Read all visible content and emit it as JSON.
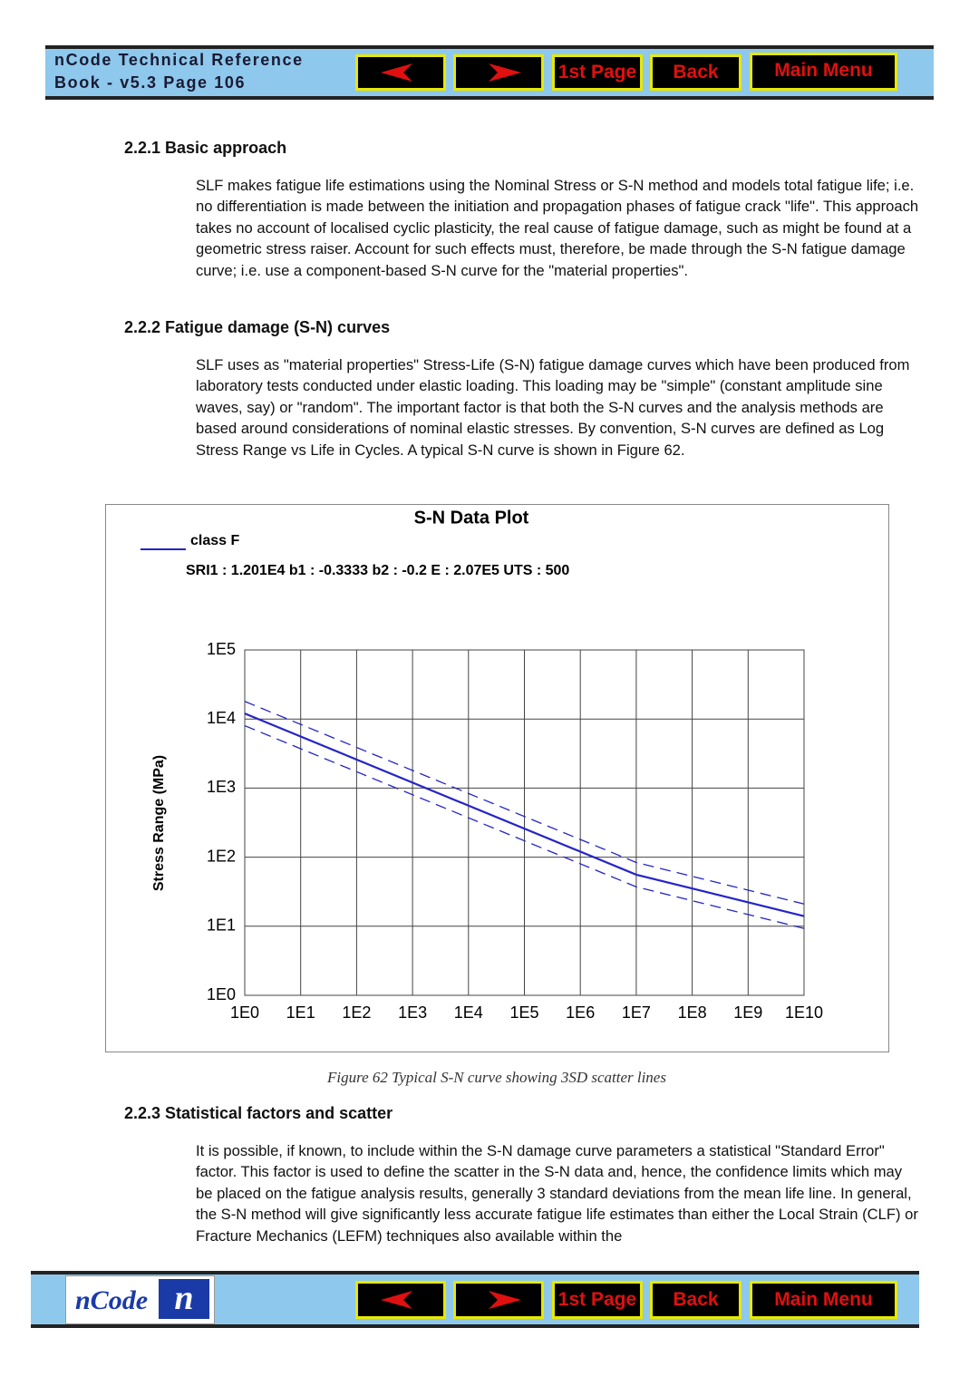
{
  "header": {
    "line1": "nCode Technical Reference",
    "line2": "Book - v5.3  Page 106",
    "buttons": [
      "1st Page",
      "Back",
      "Main Menu"
    ]
  },
  "sections": [
    {
      "heading": "2.2.1 Basic approach",
      "text": "SLF makes fatigue life estimations using the Nominal Stress or S-N method and models total fatigue life; i.e. no differentiation is made between the initiation and propagation phases of fatigue crack \"life\". This approach takes no account of localised cyclic plasticity, the real cause of fatigue damage, such as might be found at a geometric stress raiser. Account for such effects must, therefore, be made through the S-N fatigue damage curve; i.e. use a component-based S-N curve for the \"material properties\"."
    },
    {
      "heading": "2.2.2 Fatigue damage (S-N) curves",
      "text": "SLF uses as \"material properties\" Stress-Life (S-N) fatigue damage curves which have been produced from laboratory tests conducted under elastic loading. This loading may be \"simple\" (constant amplitude sine waves, say) or \"random\". The important factor is that both the S-N curves and the analysis methods are based around considerations of nominal elastic stresses. By convention, S-N curves are defined as Log Stress Range vs Life in Cycles. A typical S-N curve is shown in Figure 62."
    },
    {
      "heading": "2.2.3 Statistical factors and scatter",
      "text": "It is possible, if known, to include within the S-N damage curve parameters a statistical \"Standard Error\" factor. This factor is used to define the scatter in the S-N data and, hence, the confidence limits which may be placed on the fatigue analysis results, generally 3 standard deviations from the mean life line. In general, the S-N method will give significantly less accurate fatigue life estimates than either the Local Strain (CLF) or Fracture Mechanics (LEFM) techniques also available within the"
    }
  ],
  "chart_data": {
    "type": "line",
    "title": "S-N  Data Plot",
    "subtitle": "SRI1 :  1.201E4  b1 : -0.3333  b2 : -0.2  E : 2.07E5  UTS : 500",
    "y_label": "Stress Range (MPa)",
    "log_x": true,
    "log_y": true,
    "grid": true,
    "legend": "top-left",
    "x": [
      1,
      10000000,
      10000000000
    ],
    "series": [
      {
        "name": "class F",
        "color": "#2424c8",
        "dashed": false,
        "values": [
          12010,
          55.8,
          14
        ]
      },
      {
        "color": "#2424c8",
        "dashed": true,
        "values": [
          18000,
          83.7,
          21
        ]
      },
      {
        "color": "#2424c8",
        "dashed": true,
        "values": [
          8000,
          37.2,
          9.3
        ]
      }
    ],
    "xlim": [
      1,
      10000000000
    ],
    "ylim": [
      1,
      100000
    ],
    "xticks": [
      {
        "value": 1,
        "label": "1E0"
      },
      {
        "value": 10,
        "label": "1E1"
      },
      {
        "value": 100,
        "label": "1E2"
      },
      {
        "value": 1000,
        "label": "1E3"
      },
      {
        "value": 10000,
        "label": "1E4"
      },
      {
        "value": 100000,
        "label": "1E5"
      },
      {
        "value": 1000000,
        "label": "1E6"
      },
      {
        "value": 10000000,
        "label": "1E7"
      },
      {
        "value": 100000000,
        "label": "1E8"
      },
      {
        "value": 1000000000,
        "label": "1E9"
      },
      {
        "value": 10000000000,
        "label": "1E10"
      }
    ],
    "yticks": [
      {
        "value": 1,
        "label": "1E0"
      },
      {
        "value": 10,
        "label": "1E1"
      },
      {
        "value": 100,
        "label": "1E2"
      },
      {
        "value": 1000,
        "label": "1E3"
      },
      {
        "value": 10000,
        "label": "1E4"
      },
      {
        "value": 100000,
        "label": "1E5"
      }
    ]
  },
  "caption": "Figure 62  Typical S-N curve showing 3SD scatter lines",
  "footer": {
    "logo_text": "nCode",
    "logo_mark": "n"
  }
}
